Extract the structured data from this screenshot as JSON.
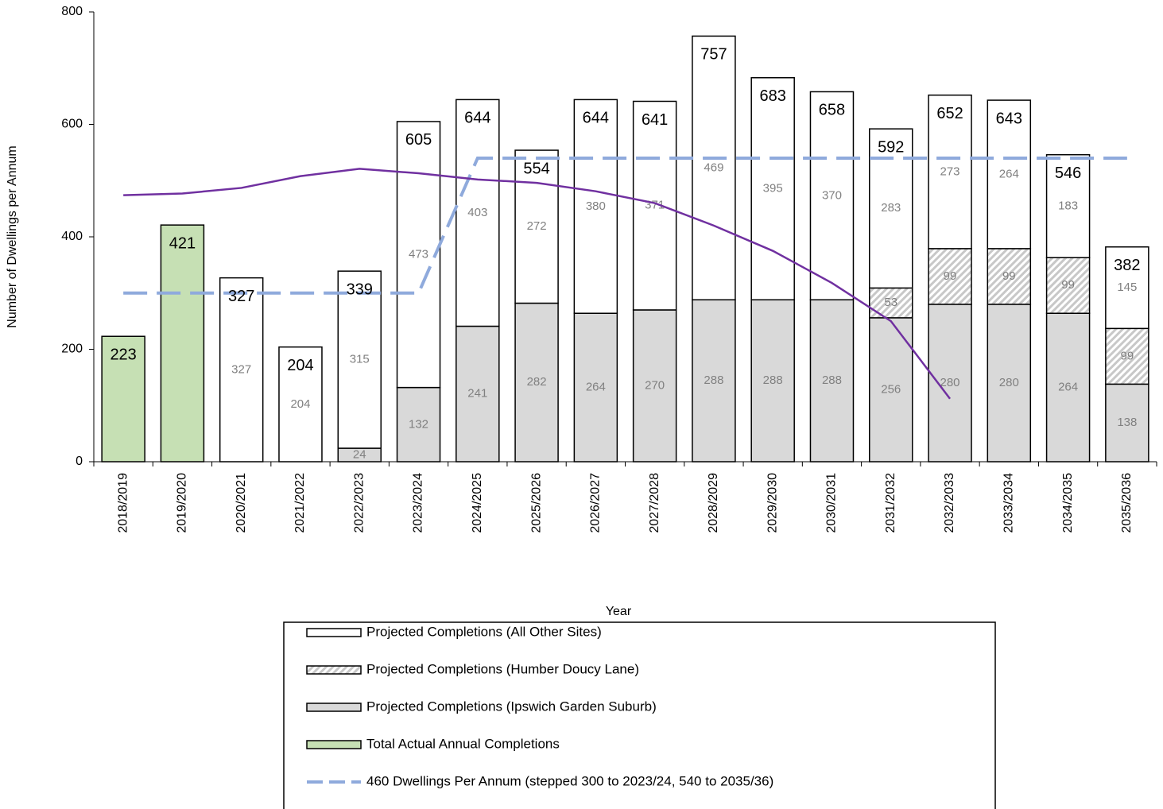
{
  "chart_data": {
    "type": "stacked-bar-line",
    "x_label": "Year",
    "y_label": "Number of Dwellings per Annum",
    "ylim": [
      0,
      800
    ],
    "yticks": [
      0,
      200,
      400,
      600,
      800
    ],
    "categories": [
      "2018/2019",
      "2019/2020",
      "2020/2021",
      "2021/2022",
      "2022/2023",
      "2023/2024",
      "2024/2025",
      "2025/2026",
      "2026/2027",
      "2027/2028",
      "2028/2029",
      "2029/2030",
      "2030/2031",
      "2031/2032",
      "2032/2033",
      "2033/2034",
      "2034/2035",
      "2035/2036"
    ],
    "totals": [
      223,
      421,
      327,
      204,
      339,
      605,
      644,
      554,
      644,
      641,
      757,
      683,
      658,
      592,
      652,
      643,
      546,
      382
    ],
    "series": [
      {
        "name": "Projected Completions (All Other Sites)",
        "kind": "bar",
        "color": "#ffffff",
        "show_labels": true,
        "values": [
          null,
          null,
          327,
          204,
          315,
          473,
          403,
          272,
          380,
          371,
          469,
          395,
          370,
          283,
          273,
          264,
          183,
          145
        ]
      },
      {
        "name": "Projected Completions (Humber Doucy Lane)",
        "kind": "bar",
        "color": "#d9d9d9",
        "hatch": true,
        "show_labels": true,
        "values": [
          null,
          null,
          null,
          null,
          null,
          null,
          null,
          null,
          null,
          null,
          null,
          null,
          null,
          53,
          99,
          99,
          99,
          99
        ]
      },
      {
        "name": "Projected Completions (Ipswich Garden Suburb)",
        "kind": "bar",
        "color": "#d9d9d9",
        "show_labels": true,
        "values": [
          null,
          null,
          null,
          null,
          24,
          132,
          241,
          282,
          264,
          270,
          288,
          288,
          288,
          256,
          280,
          280,
          264,
          138
        ]
      },
      {
        "name": "Total Actual Annual Completions",
        "kind": "bar",
        "color": "#c6e0b4",
        "show_labels": false,
        "values": [
          223,
          421,
          null,
          null,
          null,
          null,
          null,
          null,
          null,
          null,
          null,
          null,
          null,
          null,
          null,
          null,
          null,
          null
        ]
      },
      {
        "name": "460 Dwellings Per Annum (stepped 300 to 2023/24, 540 to 2035/36)",
        "kind": "line",
        "color": "#8faadc",
        "dashed": true,
        "values": [
          300,
          300,
          300,
          300,
          300,
          300,
          540,
          540,
          540,
          540,
          540,
          540,
          540,
          540,
          540,
          540,
          540,
          540
        ]
      },
      {
        "kind": "line",
        "color": "#7030a0",
        "dashed": false,
        "values": [
          474,
          477,
          487,
          508,
          521,
          513,
          502,
          496,
          481,
          460,
          420,
          375,
          318,
          250,
          112,
          null,
          null,
          null
        ]
      }
    ]
  }
}
